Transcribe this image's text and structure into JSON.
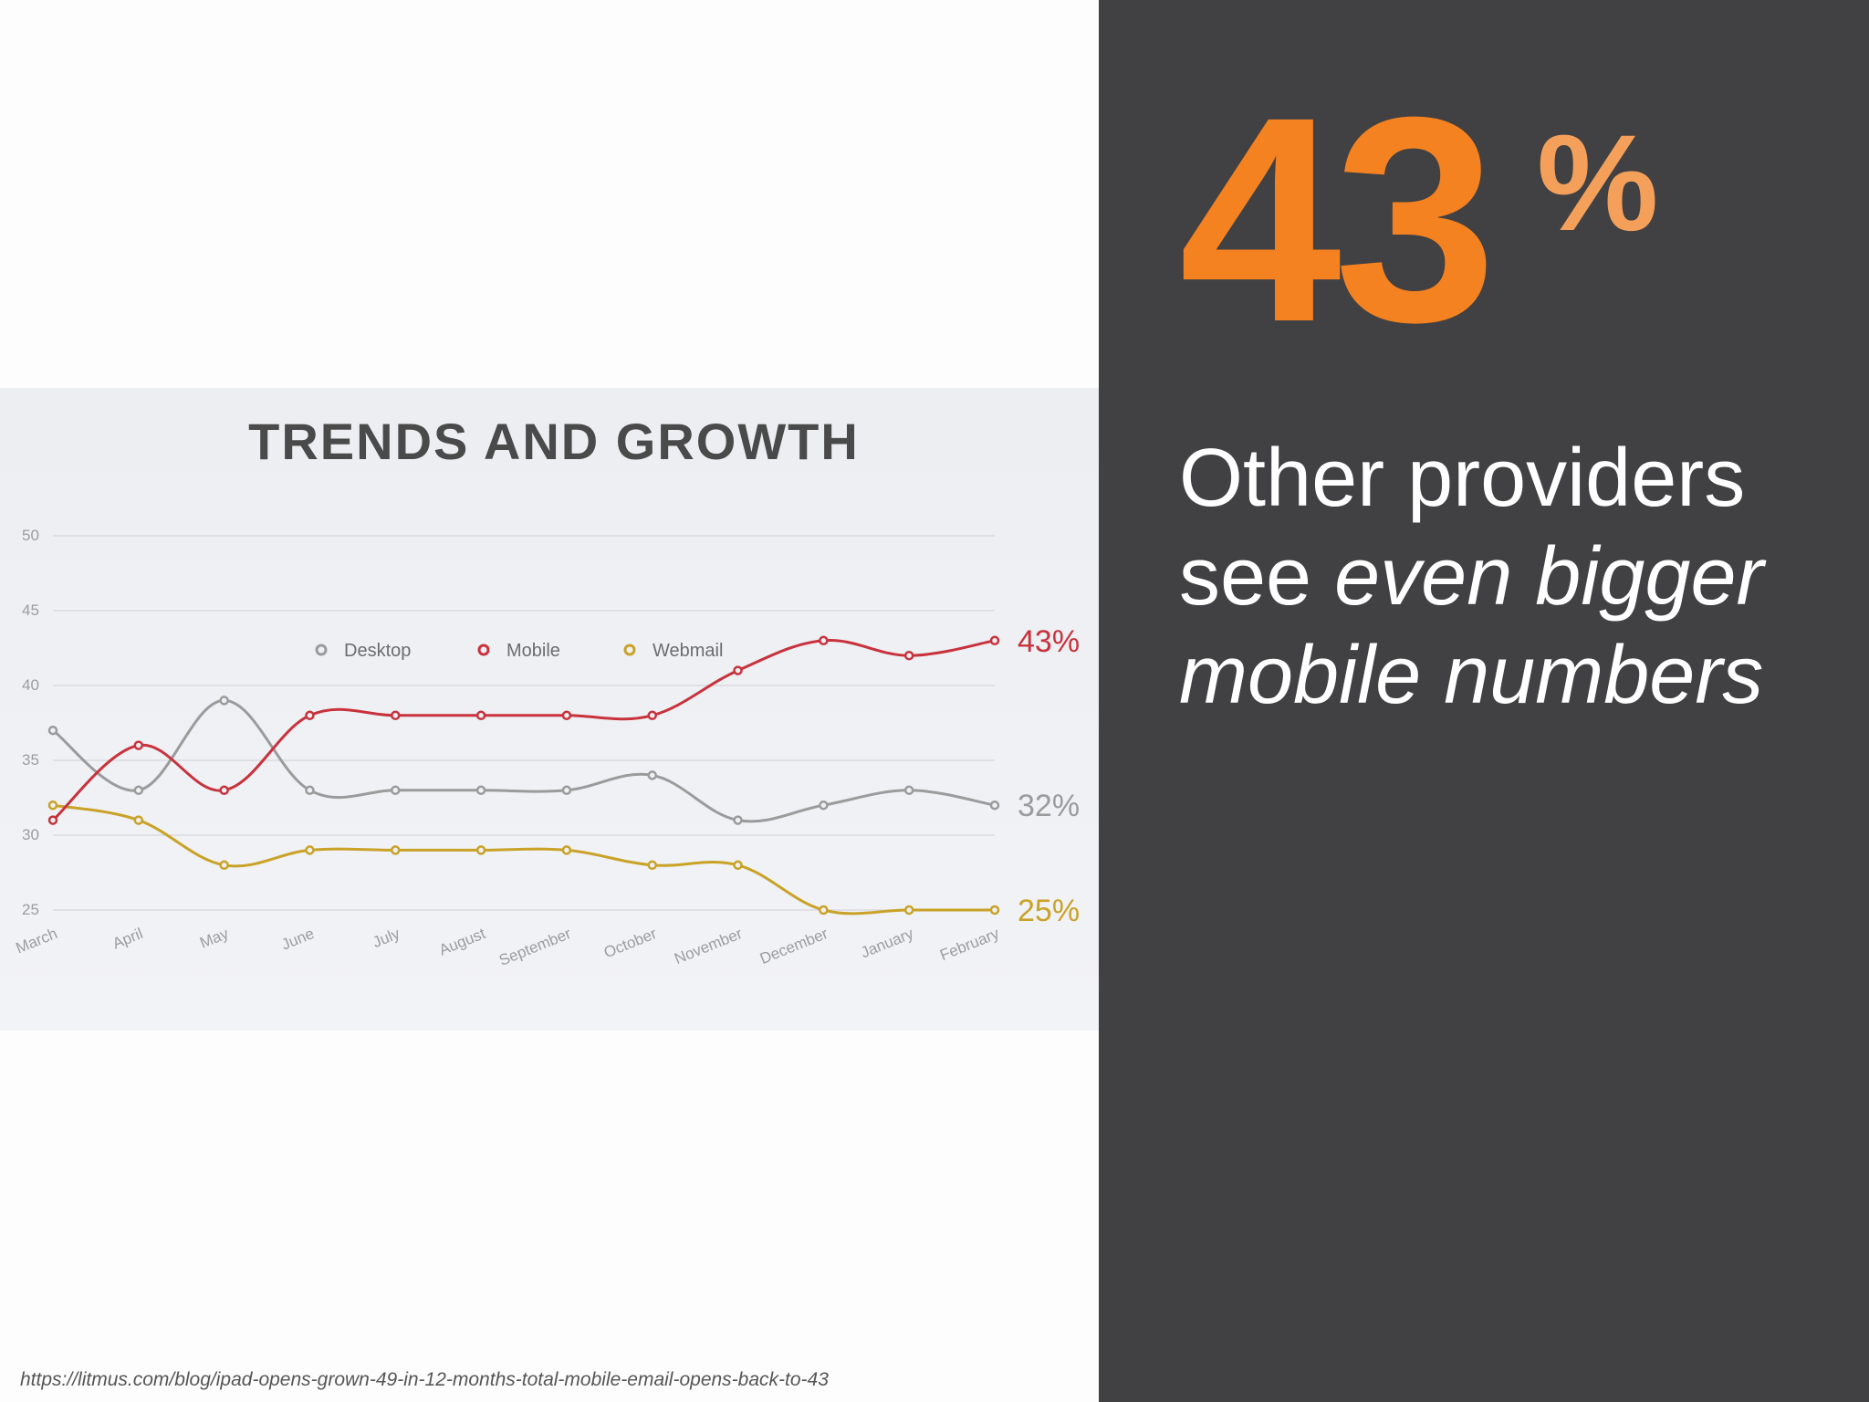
{
  "slide": {
    "headline_line1": "Other providers",
    "headline_see": "see ",
    "headline_emph1": "even bigger",
    "headline_emph2": "mobile numbers",
    "big_number": "43",
    "big_percent": "%",
    "source_url": "https://litmus.com/blog/ipad-opens-grown-49-in-12-months-total-mobile-email-opens-back-to-43"
  },
  "chart_data": {
    "type": "line",
    "title": "TRENDS AND GROWTH",
    "categories": [
      "March",
      "April",
      "May",
      "June",
      "July",
      "August",
      "September",
      "October",
      "November",
      "December",
      "January",
      "February"
    ],
    "y_ticks": [
      50,
      45,
      40,
      35,
      30,
      25
    ],
    "ylim": [
      25,
      50
    ],
    "grid": true,
    "legend_position": "top-center",
    "series": [
      {
        "name": "Desktop",
        "color": "#9b9b9b",
        "end_label": "32%",
        "values": [
          37,
          33,
          39,
          33,
          33,
          33,
          33,
          34,
          31,
          32,
          33,
          32
        ]
      },
      {
        "name": "Mobile",
        "color": "#c8323c",
        "end_label": "43%",
        "values": [
          31,
          36,
          33,
          38,
          38,
          38,
          38,
          38,
          41,
          43,
          42,
          43
        ]
      },
      {
        "name": "Webmail",
        "color": "#c9a227",
        "end_label": "25%",
        "values": [
          32,
          31,
          28,
          29,
          29,
          29,
          29,
          28,
          28,
          25,
          25,
          25
        ]
      }
    ]
  }
}
